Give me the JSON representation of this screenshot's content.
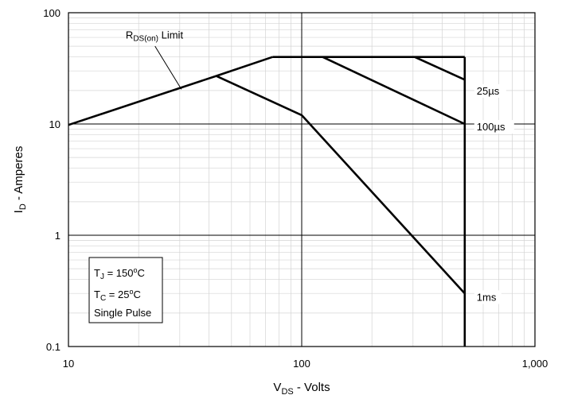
{
  "chart_data": {
    "type": "line",
    "title": "",
    "x_scale": "log",
    "y_scale": "log",
    "xlim": [
      10,
      1000
    ],
    "ylim": [
      0.1,
      100
    ],
    "grid": "major and minor log gridlines",
    "xlabel": {
      "main": "V",
      "sub": "DS",
      "tail": " - Volts"
    },
    "ylabel": {
      "main": "I",
      "sub": "D",
      "tail": " - Amperes"
    },
    "x_ticks": [
      {
        "value": 10,
        "label": "10"
      },
      {
        "value": 100,
        "label": "100"
      },
      {
        "value": 1000,
        "label": "1,000"
      }
    ],
    "y_ticks": [
      {
        "value": 0.1,
        "label": "0.1"
      },
      {
        "value": 1,
        "label": "1"
      },
      {
        "value": 10,
        "label": "10"
      },
      {
        "value": 100,
        "label": "100"
      }
    ],
    "series": [
      {
        "key": "rds_limit",
        "points": [
          [
            10,
            9.8
          ],
          [
            43,
            27
          ],
          [
            75,
            40
          ]
        ]
      },
      {
        "key": "current_limit",
        "points": [
          [
            75,
            40
          ],
          [
            500,
            40
          ]
        ]
      },
      {
        "key": "voltage_limit",
        "points": [
          [
            500,
            40
          ],
          [
            500,
            0.1
          ]
        ]
      },
      {
        "key": "25us",
        "points": [
          [
            305,
            40
          ],
          [
            500,
            25
          ]
        ]
      },
      {
        "key": "100us",
        "points": [
          [
            123,
            40
          ],
          [
            500,
            10
          ]
        ]
      },
      {
        "key": "1ms",
        "points": [
          [
            43,
            27
          ],
          [
            100,
            12
          ],
          [
            500,
            0.3
          ]
        ]
      }
    ],
    "annotations": {
      "rds_limit": {
        "main": "R",
        "sub": "DS(on)",
        "tail": " Limit"
      },
      "t25us": "25µs",
      "t100us": "100µs",
      "t1ms": "1ms"
    },
    "conditions": {
      "tj": {
        "main": "T",
        "sub": "J",
        "mid": " = 150",
        "sup": "o",
        "tail": "C"
      },
      "tc": {
        "main": "T",
        "sub": "C",
        "mid": " = 25",
        "sup": "o",
        "tail": "C"
      },
      "pulse": "Single Pulse"
    }
  }
}
